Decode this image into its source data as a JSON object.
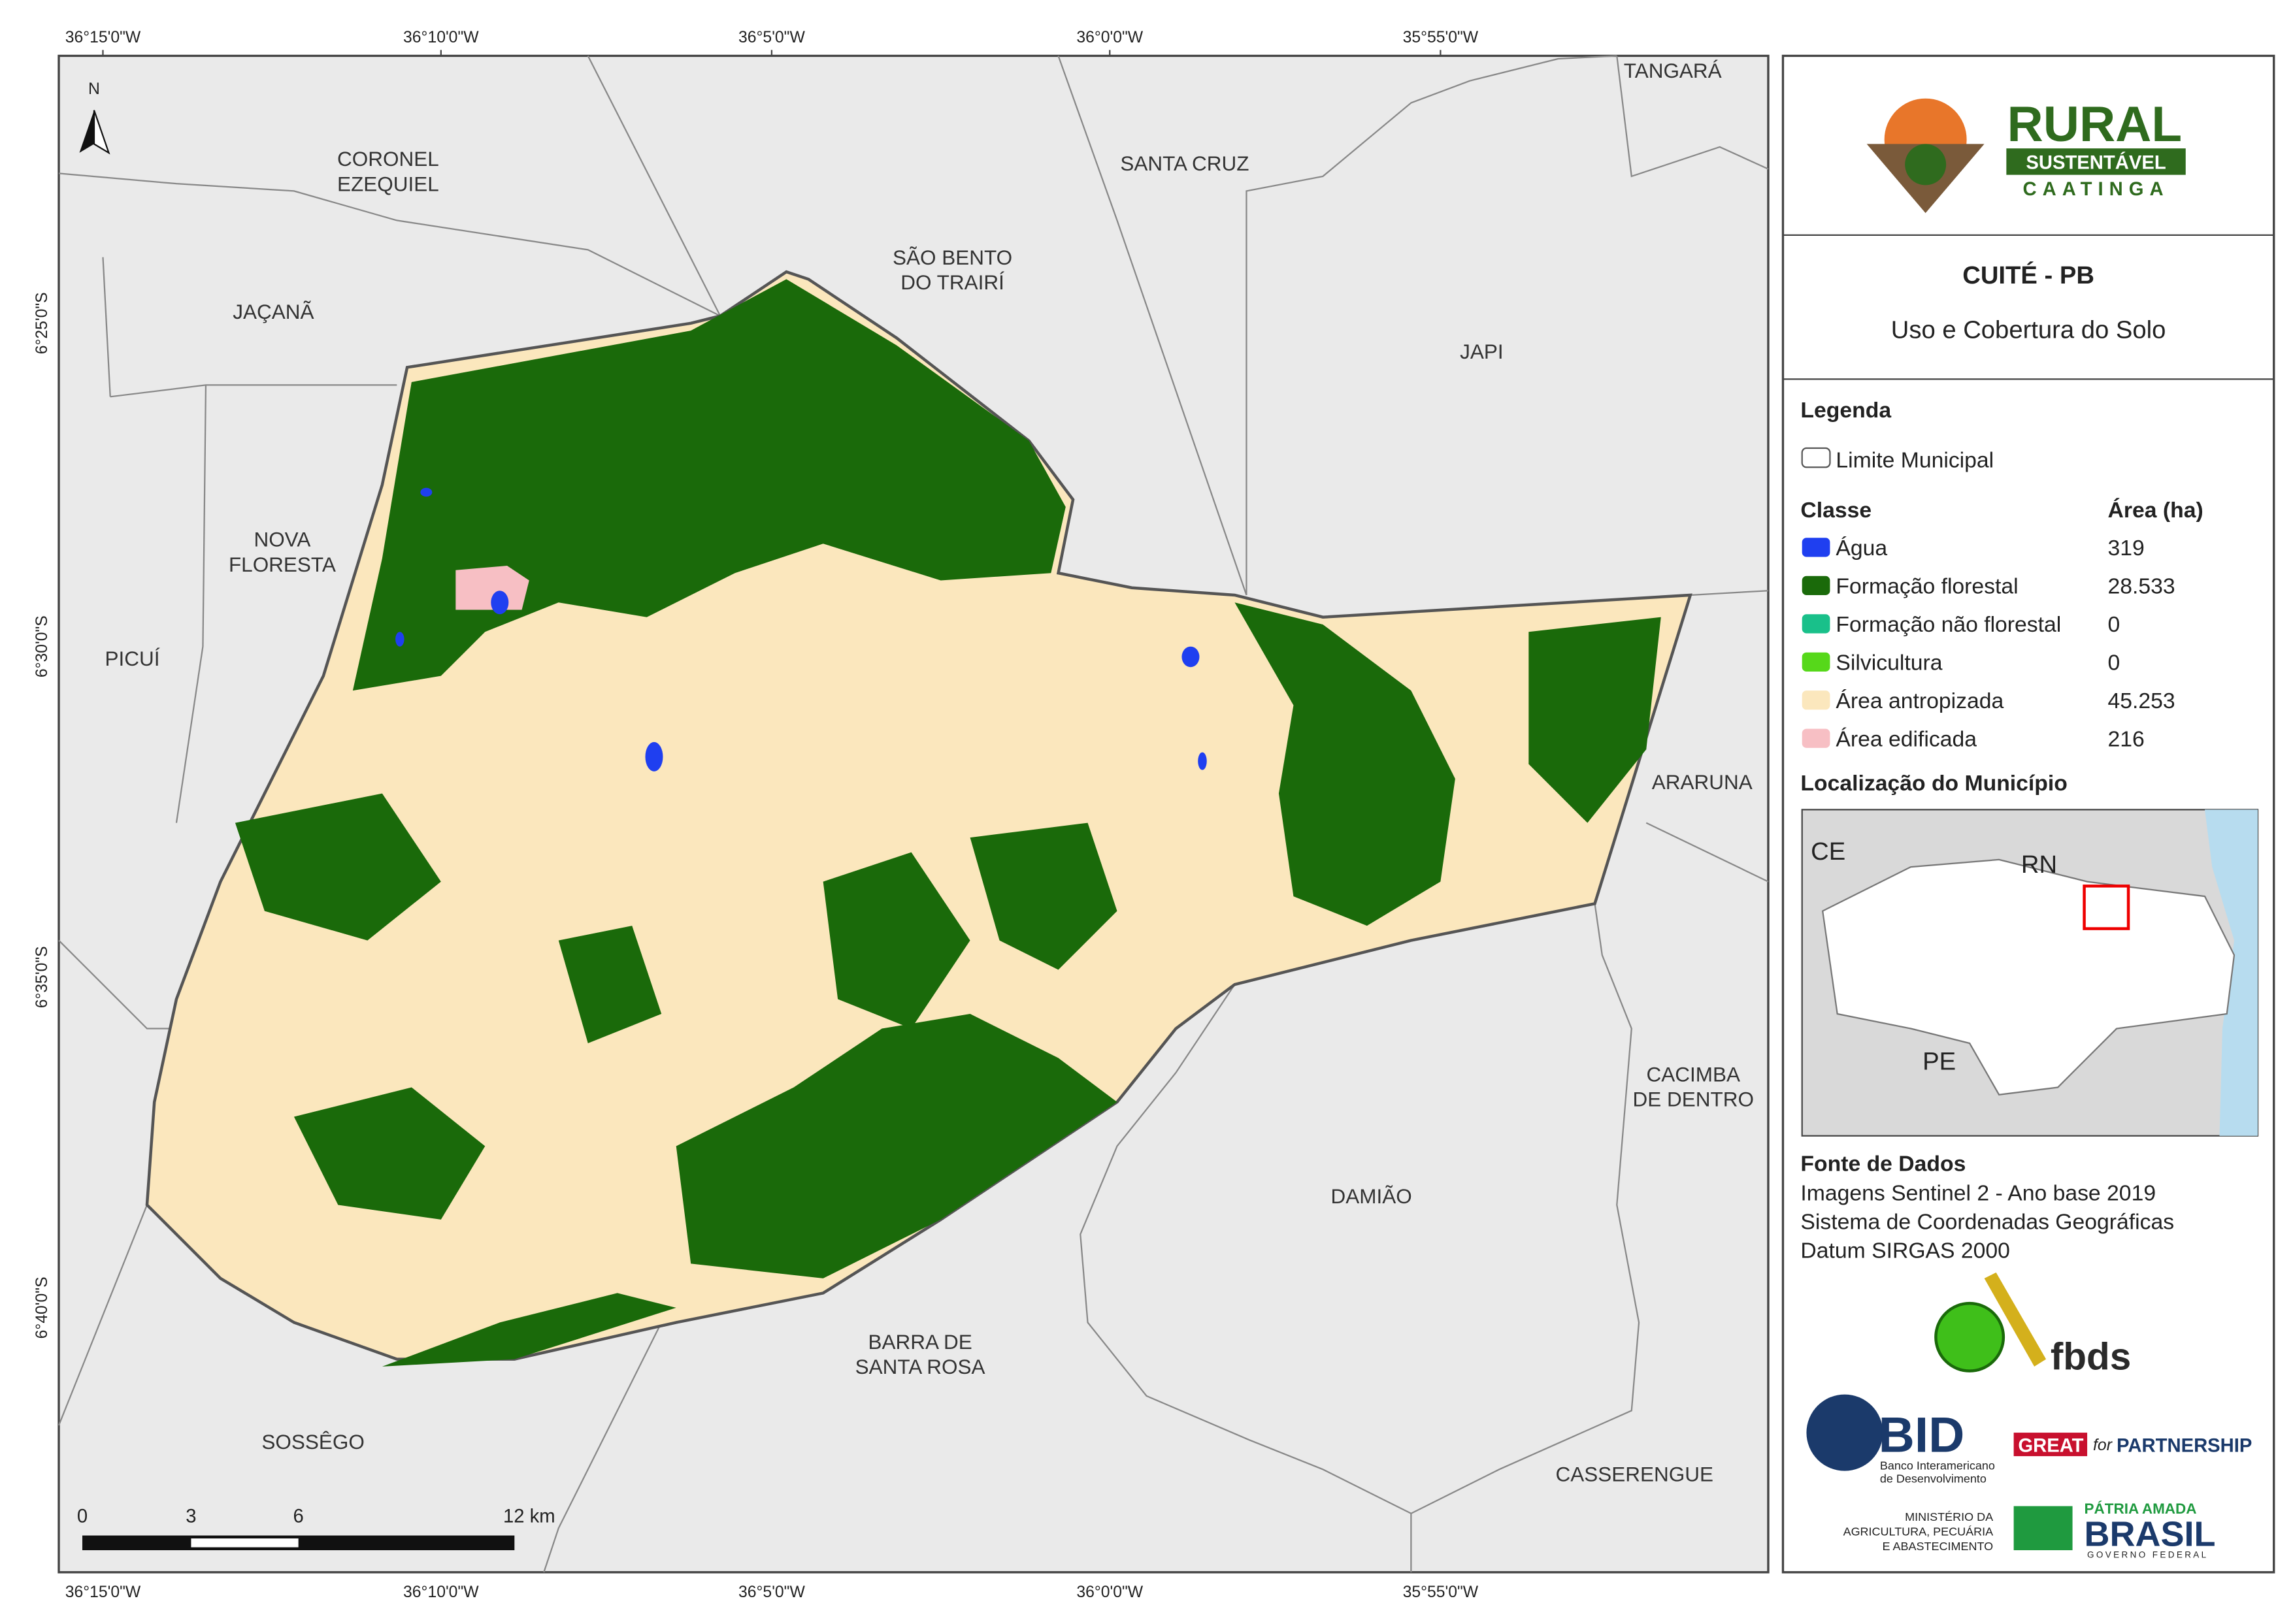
{
  "map": {
    "north": "N",
    "lon_labels": [
      "36°15'0\"W",
      "36°10'0\"W",
      "36°5'0\"W",
      "36°0'0\"W",
      "35°55'0\"W"
    ],
    "lat_labels": [
      "6°25'0\"S",
      "6°30'0\"S",
      "6°35'0\"S",
      "6°40'0\"S"
    ],
    "places": [
      {
        "lines": [
          "CORONEL",
          "EZEQUIEL"
        ]
      },
      {
        "lines": [
          "SANTA CRUZ"
        ]
      },
      {
        "lines": [
          "TANGARÁ"
        ]
      },
      {
        "lines": [
          "SÃO BENTO",
          "DO TRAIRÍ"
        ]
      },
      {
        "lines": [
          "JAÇANÃ"
        ]
      },
      {
        "lines": [
          "JAPI"
        ]
      },
      {
        "lines": [
          "NOVA",
          "FLORESTA"
        ]
      },
      {
        "lines": [
          "PICUÍ"
        ]
      },
      {
        "lines": [
          "ARARUNA"
        ]
      },
      {
        "lines": [
          "CACIMBA",
          "DE DENTRO"
        ]
      },
      {
        "lines": [
          "DAMIÃO"
        ]
      },
      {
        "lines": [
          "BARRA DE",
          "SANTA ROSA"
        ]
      },
      {
        "lines": [
          "SOSSÊGO"
        ]
      },
      {
        "lines": [
          "CASSERENGUE"
        ]
      }
    ],
    "scale_labels": [
      "0",
      "3",
      "6",
      "12 km"
    ]
  },
  "panel": {
    "logo": {
      "title": "RURAL",
      "band": "SUSTENTÁVEL",
      "sub": "CAATINGA"
    },
    "title": "CUITÉ - PB",
    "subtitle": "Uso e Cobertura do Solo",
    "legend": {
      "heading": "Legenda",
      "boundary": "Limite Municipal",
      "class_header": "Classe",
      "area_header": "Área (ha)",
      "classes": [
        {
          "name": "Água",
          "area": "319",
          "color": "#1f3ff0"
        },
        {
          "name": "Formação florestal",
          "area": "28.533",
          "color": "#1a6a0a"
        },
        {
          "name": "Formação não florestal",
          "area": "0",
          "color": "#19c08a"
        },
        {
          "name": "Silvicultura",
          "area": "0",
          "color": "#56d81a"
        },
        {
          "name": "Área antropizada",
          "area": "45.253",
          "color": "#fbe7bd"
        },
        {
          "name": "Área edificada",
          "area": "216",
          "color": "#f7bfc4"
        }
      ]
    },
    "location": {
      "heading": "Localização do Município",
      "labels": [
        "CE",
        "RN",
        "PE"
      ]
    },
    "source": {
      "heading": "Fonte de Dados",
      "lines": [
        "Imagens Sentinel 2 - Ano base 2019",
        "Sistema de Coordenadas Geográficas",
        "Datum SIRGAS 2000"
      ]
    },
    "partners": {
      "fbds": "fbds",
      "bid": "BID",
      "bid_sub": [
        "Banco Interamericano",
        "de Desenvolvimento"
      ],
      "great": "GREAT",
      "great_for": "for",
      "great_partner": "PARTNERSHIP",
      "ministry": [
        "MINISTÉRIO DA",
        "AGRICULTURA, PECUÁRIA",
        "E ABASTECIMENTO"
      ],
      "brasil_top": "PÁTRIA AMADA",
      "brasil": "BRASIL",
      "brasil_sub": "GOVERNO FEDERAL"
    }
  }
}
